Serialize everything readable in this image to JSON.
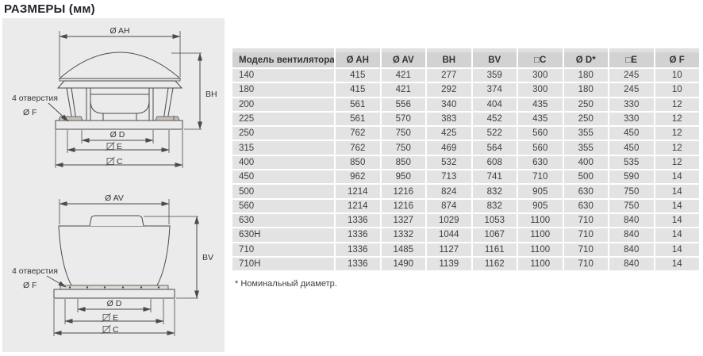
{
  "page_title": "РАЗМЕРЫ (мм)",
  "drawings": {
    "horizontal": {
      "dim_top": "Ø AH",
      "dim_height": "BH",
      "holes_label": "4 отверстия",
      "hole_dia": "Ø F",
      "dim_d": "Ø D",
      "dim_e": "E",
      "dim_c": "C"
    },
    "vertical": {
      "dim_top": "Ø AV",
      "dim_height": "BV",
      "holes_label": "4 отверстия",
      "hole_dia": "Ø F",
      "dim_d": "Ø D",
      "dim_e": "E",
      "dim_c": "C"
    }
  },
  "table": {
    "columns": [
      "Модель вентилятора",
      "Ø AH",
      "Ø AV",
      "BH",
      "BV",
      "□C",
      "Ø D*",
      "□E",
      "Ø F"
    ],
    "rows": [
      [
        "140",
        415,
        421,
        277,
        359,
        300,
        180,
        245,
        10
      ],
      [
        "180",
        415,
        421,
        292,
        374,
        300,
        180,
        245,
        10
      ],
      [
        "200",
        561,
        556,
        340,
        404,
        435,
        250,
        330,
        12
      ],
      [
        "225",
        561,
        570,
        383,
        452,
        435,
        250,
        330,
        12
      ],
      [
        "250",
        762,
        750,
        425,
        522,
        560,
        355,
        450,
        12
      ],
      [
        "315",
        762,
        750,
        469,
        564,
        560,
        355,
        450,
        12
      ],
      [
        "400",
        850,
        850,
        532,
        608,
        630,
        400,
        535,
        12
      ],
      [
        "450",
        962,
        950,
        713,
        741,
        710,
        500,
        590,
        14
      ],
      [
        "500",
        1214,
        1216,
        824,
        832,
        905,
        630,
        750,
        14
      ],
      [
        "560",
        1214,
        1216,
        874,
        832,
        905,
        630,
        750,
        14
      ],
      [
        "630",
        1336,
        1327,
        1029,
        1053,
        1100,
        710,
        840,
        14
      ],
      [
        "630H",
        1336,
        1332,
        1044,
        1067,
        1100,
        710,
        840,
        14
      ],
      [
        "710",
        1336,
        1485,
        1127,
        1161,
        1100,
        710,
        840,
        14
      ],
      [
        "710H",
        1336,
        1490,
        1139,
        1162,
        1100,
        710,
        840,
        14
      ]
    ],
    "footnote": "* Номинальный диаметр."
  },
  "colors": {
    "panel_bg": "#ebebeb",
    "table_header_bg": "#d2d2d2",
    "table_row_bg": "#e3e3e3",
    "line": "#4a4a4a",
    "text": "#35353a"
  }
}
